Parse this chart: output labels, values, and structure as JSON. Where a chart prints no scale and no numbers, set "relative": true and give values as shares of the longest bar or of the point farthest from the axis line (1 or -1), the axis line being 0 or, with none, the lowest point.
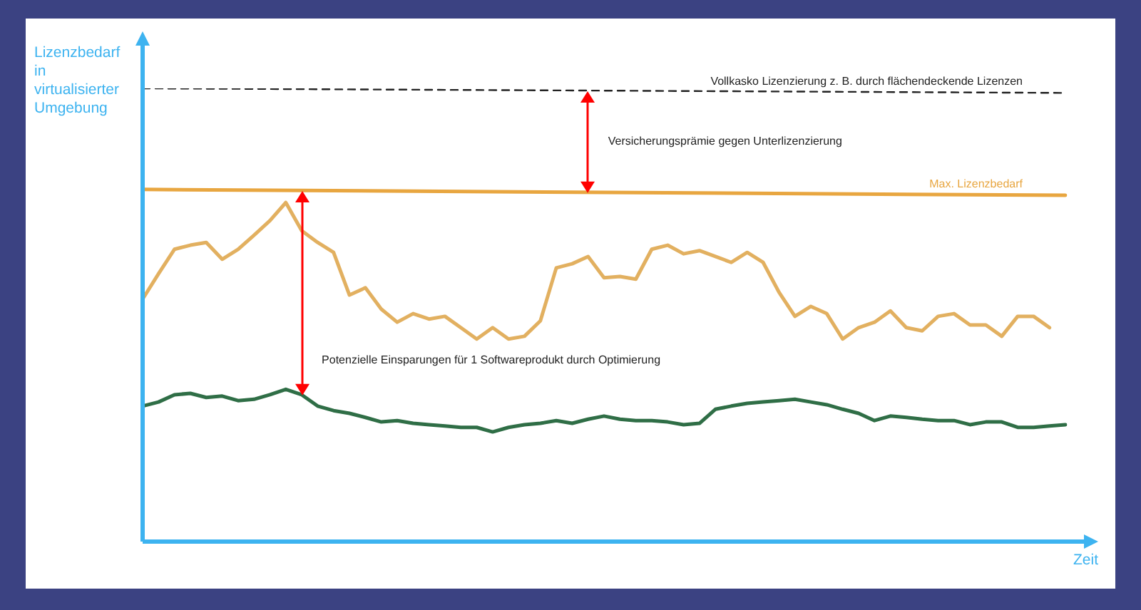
{
  "chart_data": {
    "type": "line",
    "relative": true,
    "xlabel": "Zeit",
    "ylabel": "Lizenzbedarf in virtualisierter Umgebung",
    "legend": false,
    "marker": "none",
    "categories": [
      null,
      null,
      null,
      null,
      null,
      null,
      null,
      null,
      null,
      null,
      null,
      null,
      null,
      null,
      null,
      null,
      null,
      null,
      null,
      null,
      null,
      null,
      null,
      null,
      null,
      null,
      null,
      null,
      null,
      null,
      null,
      null,
      null,
      null,
      null,
      null,
      null,
      null,
      null,
      null,
      null,
      null,
      null,
      null,
      null,
      null,
      null,
      null,
      null,
      null,
      null,
      null,
      null,
      null,
      null,
      null,
      null,
      null,
      null
    ],
    "series": [
      {
        "name": "Vollkasko Lizenzierung z. B. durch flächendeckende Lizenzen",
        "color": "#222222",
        "line_style": "dashed",
        "values": [
          1,
          null,
          null,
          null,
          null,
          null,
          null,
          null,
          null,
          null,
          null,
          null,
          null,
          null,
          null,
          null,
          null,
          null,
          null,
          null,
          null,
          null,
          null,
          null,
          null,
          null,
          null,
          null,
          null,
          null,
          null,
          null,
          null,
          null,
          null,
          null,
          null,
          null,
          null,
          null,
          null,
          null,
          null,
          null,
          null,
          null,
          null,
          null,
          null,
          null,
          null,
          null,
          null,
          null,
          null,
          null,
          null,
          null,
          0.99
        ]
      },
      {
        "name": "Max. Lizenzbedarf",
        "color": "#e8a640",
        "line_style": "solid",
        "values": [
          0.777,
          null,
          null,
          null,
          null,
          null,
          null,
          null,
          null,
          null,
          null,
          null,
          null,
          null,
          null,
          null,
          null,
          null,
          null,
          null,
          null,
          null,
          null,
          null,
          null,
          null,
          null,
          null,
          null,
          null,
          null,
          null,
          null,
          null,
          null,
          null,
          null,
          null,
          null,
          null,
          null,
          null,
          null,
          null,
          null,
          null,
          null,
          null,
          null,
          null,
          null,
          null,
          null,
          null,
          null,
          null,
          null,
          null,
          0.764
        ]
      },
      {
        "color": "#e2b060",
        "line_style": "solid",
        "values": [
          0.535,
          0.591,
          0.645,
          0.654,
          0.66,
          0.623,
          0.645,
          0.676,
          0.708,
          0.748,
          0.686,
          0.66,
          0.638,
          0.544,
          0.56,
          0.513,
          0.484,
          0.503,
          0.491,
          0.497,
          0.472,
          0.447,
          0.472,
          0.447,
          0.453,
          0.487,
          0.604,
          0.613,
          0.629,
          0.582,
          0.585,
          0.579,
          0.645,
          0.654,
          0.635,
          0.642,
          0.629,
          0.616,
          0.638,
          0.616,
          0.55,
          0.497,
          0.519,
          0.503,
          0.447,
          0.472,
          0.484,
          0.509,
          0.472,
          0.465,
          0.497,
          0.503,
          0.478,
          0.478,
          0.453,
          0.497,
          0.497,
          0.472,
          null
        ]
      },
      {
        "color": "#2f6e46",
        "line_style": "solid",
        "values": [
          0.299,
          0.308,
          0.324,
          0.327,
          0.318,
          0.321,
          0.311,
          0.314,
          0.324,
          0.336,
          0.324,
          0.299,
          0.289,
          0.283,
          0.274,
          0.264,
          0.267,
          0.261,
          0.258,
          0.255,
          0.252,
          0.252,
          0.242,
          0.252,
          0.258,
          0.261,
          0.267,
          0.261,
          0.27,
          0.277,
          0.27,
          0.267,
          0.267,
          0.264,
          0.258,
          0.261,
          0.292,
          0.299,
          0.305,
          0.308,
          0.311,
          0.314,
          0.308,
          0.302,
          0.292,
          0.283,
          0.267,
          0.277,
          0.274,
          0.27,
          0.267,
          0.267,
          0.258,
          0.264,
          0.264,
          0.252,
          0.252,
          0.255,
          0.258
        ]
      }
    ],
    "annotations": [
      "Versicherungsprämie gegen Unterlizenzierung",
      "Potenzielle Einsparungen für 1 Softwareprodukt durch Optimierung"
    ]
  }
}
